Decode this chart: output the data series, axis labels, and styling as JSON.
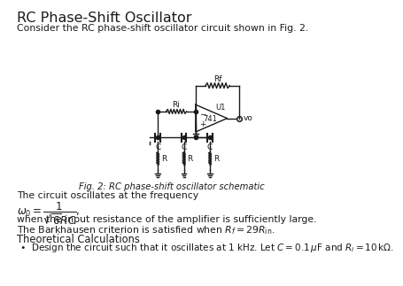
{
  "title": "RC Phase-Shift Oscillator",
  "intro_text": "Consider the RC phase-shift oscillator circuit shown in Fig. 2.",
  "fig_caption": "Fig. 2: RC phase-shift oscillator schematic",
  "freq_text": "The circuit oscillates at the frequency",
  "freq_formula_pre": "$\\omega_0 = \\dfrac{1}{\\sqrt{6}RC}$,",
  "amplifier_text": "when the input resistance of the amplifier is sufficiently large.",
  "barkhausen_text": "The Barkhausen criterion is satisfied when $R_f = 29R_{\\mathrm{in}}$.",
  "theoretical_title": "Theoretical Calculations",
  "bullet_text": "Design the circuit such that it oscillates at 1 kHz. Let $C = 0.1\\,\\mu$F and $R_i = 10\\,\\mathrm{k\\Omega}$.",
  "background_color": "#ffffff",
  "text_color": "#1a1a1a",
  "line_color": "#1a1a1a",
  "title_fontsize": 11.5,
  "body_fontsize": 7.8
}
